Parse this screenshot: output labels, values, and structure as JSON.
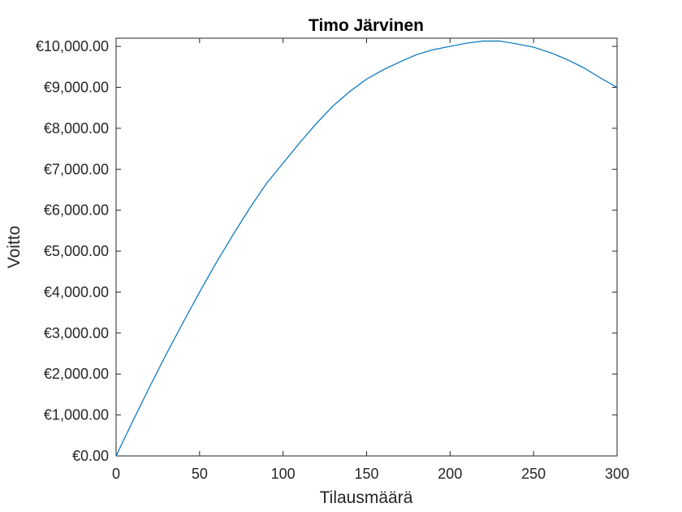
{
  "chart_data": {
    "type": "line",
    "title": "Timo Järvinen",
    "xlabel": "Tilausmäärä",
    "ylabel": "Voitto",
    "xlim": [
      0,
      300
    ],
    "ylim": [
      0,
      10200
    ],
    "x_ticks": [
      0,
      50,
      100,
      150,
      200,
      250,
      300
    ],
    "x_tick_labels": [
      "0",
      "50",
      "100",
      "150",
      "200",
      "250",
      "300"
    ],
    "y_ticks": [
      0,
      1000,
      2000,
      3000,
      4000,
      5000,
      6000,
      7000,
      8000,
      9000,
      10000
    ],
    "y_tick_labels": [
      "€0.00",
      "€1,000.00",
      "€2,000.00",
      "€3,000.00",
      "€4,000.00",
      "€5,000.00",
      "€6,000.00",
      "€7,000.00",
      "€8,000.00",
      "€9,000.00",
      "€10,000.00"
    ],
    "grid": false,
    "series": [
      {
        "color": "#0072bd",
        "x": [
          0,
          10,
          20,
          30,
          40,
          50,
          60,
          70,
          80,
          90,
          100,
          110,
          120,
          130,
          140,
          150,
          160,
          170,
          180,
          190,
          200,
          210,
          220,
          230,
          240,
          250,
          260,
          270,
          280,
          290,
          300
        ],
        "y": [
          0,
          850,
          1680,
          2480,
          3250,
          4000,
          4720,
          5400,
          6050,
          6650,
          7150,
          7650,
          8120,
          8550,
          8900,
          9200,
          9430,
          9620,
          9800,
          9920,
          10000,
          10080,
          10130,
          10130,
          10060,
          9980,
          9850,
          9680,
          9480,
          9230,
          9000
        ]
      }
    ]
  }
}
